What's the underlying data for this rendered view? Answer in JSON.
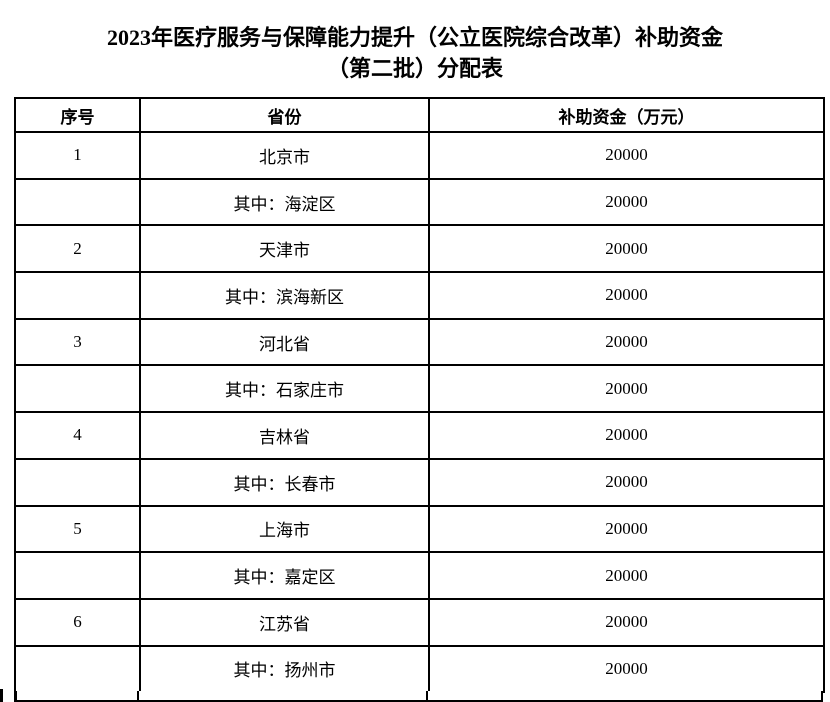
{
  "document": {
    "title_line1": "2023年医疗服务与保障能力提升（公立医院综合改革）补助资金",
    "title_line2": "（第二批）分配表"
  },
  "table": {
    "headers": [
      "序号",
      "省份",
      "补助资金（万元）"
    ],
    "rows": [
      {
        "no": "1",
        "region": "北京市",
        "amount": "20000"
      },
      {
        "no": "",
        "region": "其中：海淀区",
        "amount": "20000"
      },
      {
        "no": "2",
        "region": "天津市",
        "amount": "20000"
      },
      {
        "no": "",
        "region": "其中：滨海新区",
        "amount": "20000"
      },
      {
        "no": "3",
        "region": "河北省",
        "amount": "20000"
      },
      {
        "no": "",
        "region": "其中：石家庄市",
        "amount": "20000"
      },
      {
        "no": "4",
        "region": "吉林省",
        "amount": "20000"
      },
      {
        "no": "",
        "region": "其中：长春市",
        "amount": "20000"
      },
      {
        "no": "5",
        "region": "上海市",
        "amount": "20000"
      },
      {
        "no": "",
        "region": "其中：嘉定区",
        "amount": "20000"
      },
      {
        "no": "6",
        "region": "江苏省",
        "amount": "20000"
      },
      {
        "no": "",
        "region": "其中：扬州市",
        "amount": "20000"
      }
    ]
  },
  "colors": {
    "text": "#000000",
    "border": "#000000",
    "background": "#ffffff"
  }
}
